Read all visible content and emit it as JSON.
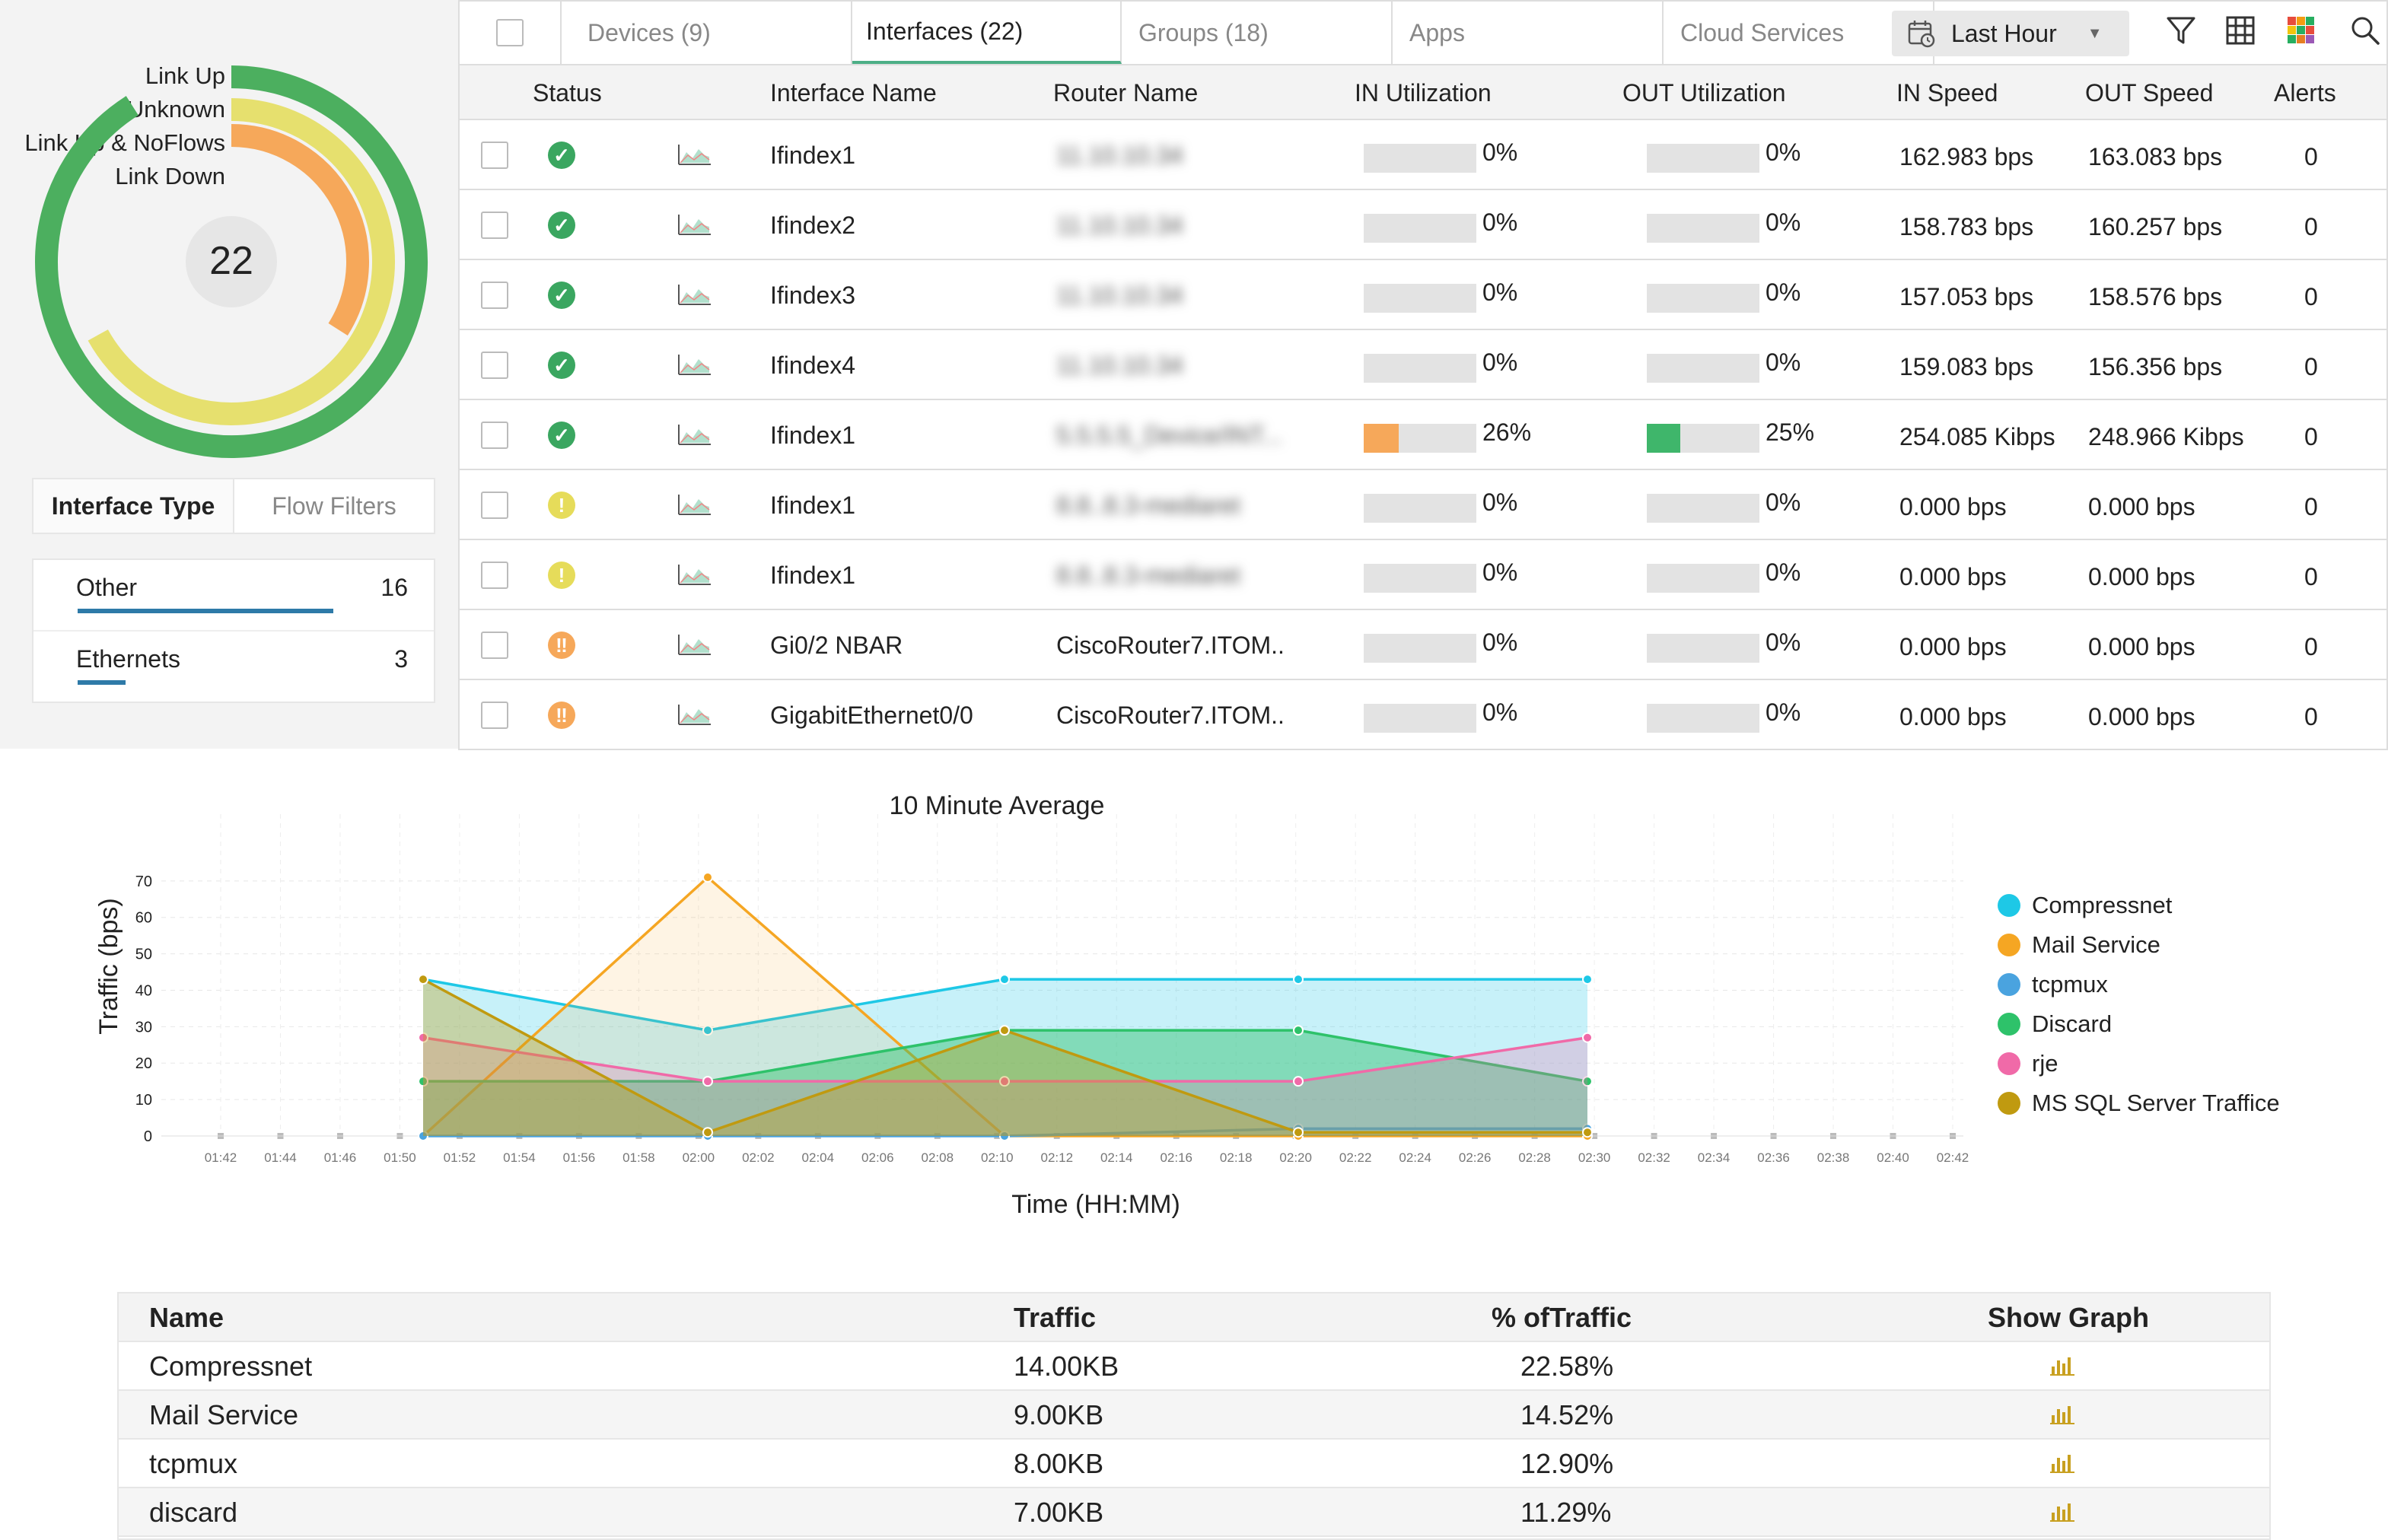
{
  "donut": {
    "legend": [
      "Link Up",
      "Unknown",
      "Link Up & NoFlows",
      "Link Down"
    ],
    "total": "22",
    "rings": [
      {
        "label": "Link Up",
        "color": "#4caf5f",
        "fraction": 0.91
      },
      {
        "label": "Unknown",
        "color": "#e6e06e",
        "fraction": 0.67
      },
      {
        "label": "Link Down",
        "color": "#f6a85a",
        "fraction": 0.34
      }
    ]
  },
  "interface_type": {
    "tabs": [
      "Interface Type",
      "Flow Filters"
    ],
    "items": [
      {
        "name": "Other",
        "count": "16",
        "fraction": 0.8
      },
      {
        "name": "Ethernets",
        "count": "3",
        "fraction": 0.15
      }
    ]
  },
  "tabs": [
    {
      "label": "Devices (9)"
    },
    {
      "label": "Interfaces (22)"
    },
    {
      "label": "Groups (18)"
    },
    {
      "label": "Apps"
    },
    {
      "label": "Cloud Services"
    }
  ],
  "time_range": "Last Hour",
  "columns": [
    "Status",
    "Interface Name",
    "Router Name",
    "IN Utilization",
    "OUT Utilization",
    "IN Speed",
    "OUT Speed",
    "Alerts"
  ],
  "rows": [
    {
      "status": "up",
      "name": "Ifindex1",
      "router": "11.10.10.34",
      "router_blurred": true,
      "in_util": "0%",
      "in_util_value": 0,
      "out_util": "0%",
      "out_util_value": 0,
      "in_speed": "162.983 bps",
      "out_speed": "163.083 bps",
      "alerts": "0"
    },
    {
      "status": "up",
      "name": "Ifindex2",
      "router": "11.10.10.34",
      "router_blurred": true,
      "in_util": "0%",
      "in_util_value": 0,
      "out_util": "0%",
      "out_util_value": 0,
      "in_speed": "158.783 bps",
      "out_speed": "160.257 bps",
      "alerts": "0"
    },
    {
      "status": "up",
      "name": "Ifindex3",
      "router": "11.10.10.34",
      "router_blurred": true,
      "in_util": "0%",
      "in_util_value": 0,
      "out_util": "0%",
      "out_util_value": 0,
      "in_speed": "157.053 bps",
      "out_speed": "158.576 bps",
      "alerts": "0"
    },
    {
      "status": "up",
      "name": "Ifindex4",
      "router": "11.10.10.34",
      "router_blurred": true,
      "in_util": "0%",
      "in_util_value": 0,
      "out_util": "0%",
      "out_util_value": 0,
      "in_speed": "159.083 bps",
      "out_speed": "156.356 bps",
      "alerts": "0"
    },
    {
      "status": "up",
      "name": "Ifindex1",
      "router": "5.5.5.5_Device/INT...",
      "router_blurred": true,
      "in_util": "26%",
      "in_util_value": 26,
      "out_util": "25%",
      "out_util_value": 25,
      "in_speed": "254.085 Kibps",
      "out_speed": "248.966 Kibps",
      "alerts": "0"
    },
    {
      "status": "warning",
      "name": "Ifindex1",
      "router": "8.8..8.3-mediaret",
      "router_blurred": true,
      "in_util": "0%",
      "in_util_value": 0,
      "out_util": "0%",
      "out_util_value": 0,
      "in_speed": "0.000 bps",
      "out_speed": "0.000 bps",
      "alerts": "0"
    },
    {
      "status": "warning",
      "name": "Ifindex1",
      "router": "8.8..8.3-mediaret",
      "router_blurred": true,
      "in_util": "0%",
      "in_util_value": 0,
      "out_util": "0%",
      "out_util_value": 0,
      "in_speed": "0.000 bps",
      "out_speed": "0.000 bps",
      "alerts": "0"
    },
    {
      "status": "trouble",
      "name": "Gi0/2 NBAR",
      "router": "CiscoRouter7.ITOM..",
      "router_blurred": false,
      "in_util": "0%",
      "in_util_value": 0,
      "out_util": "0%",
      "out_util_value": 0,
      "in_speed": "0.000 bps",
      "out_speed": "0.000 bps",
      "alerts": "0"
    },
    {
      "status": "trouble",
      "name": "GigabitEthernet0/0",
      "router": "CiscoRouter7.ITOM..",
      "router_blurred": false,
      "in_util": "0%",
      "in_util_value": 0,
      "out_util": "0%",
      "out_util_value": 0,
      "in_speed": "0.000 bps",
      "out_speed": "0.000 bps",
      "alerts": "0"
    }
  ],
  "colors": {
    "up": "#3aa660",
    "warning": "#e6dc5a",
    "trouble": "#f6a85a",
    "in_fill": "#f6a85a",
    "out_fill": "#3fb66b",
    "bar_icon": "#c8a020"
  },
  "chart_data": {
    "type": "area",
    "title": "10 Minute Average",
    "xlabel": "Time (HH:MM)",
    "ylabel": "Traffic (bps)",
    "ylim": [
      0,
      80
    ],
    "yticks": [
      0,
      10,
      20,
      30,
      40,
      50,
      60,
      70
    ],
    "xticks": [
      "01:42",
      "01:44",
      "01:46",
      "01:50",
      "01:52",
      "01:54",
      "01:56",
      "01:58",
      "02:00",
      "02:02",
      "02:04",
      "02:06",
      "02:08",
      "02:10",
      "02:12",
      "02:14",
      "02:16",
      "02:18",
      "02:20",
      "02:22",
      "02:24",
      "02:26",
      "02:28",
      "02:30",
      "02:32",
      "02:34",
      "02:36",
      "02:38",
      "02:40",
      "02:42"
    ],
    "x": [
      "01:50",
      "02:00",
      "02:10",
      "02:20",
      "02:30"
    ],
    "series": [
      {
        "name": "Compressnet",
        "color": "#1ec8e6",
        "fill": "rgba(30,200,230,0.25)",
        "values": [
          43,
          29,
          43,
          43,
          43
        ]
      },
      {
        "name": "Mail Service",
        "color": "#f5a623",
        "fill": "rgba(245,166,35,0.12)",
        "values": [
          0,
          71,
          0,
          0,
          0
        ]
      },
      {
        "name": "tcpmux",
        "color": "#4aa3df",
        "fill": "rgba(74,163,223,0.15)",
        "values": [
          0,
          0,
          0,
          2,
          2
        ]
      },
      {
        "name": "Discard",
        "color": "#2ec26a",
        "fill": "rgba(46,194,106,0.45)",
        "values": [
          15,
          15,
          29,
          29,
          15
        ]
      },
      {
        "name": "rje",
        "color": "#f06aa8",
        "fill": "rgba(240,106,168,0.25)",
        "values": [
          27,
          15,
          15,
          15,
          27
        ]
      },
      {
        "name": "MS SQL Server Traffice",
        "color": "#c09a10",
        "fill": "rgba(192,154,16,0.35)",
        "values": [
          43,
          1,
          29,
          1,
          1
        ]
      }
    ]
  },
  "traffic_table": {
    "headers": [
      "Name",
      "Traffic",
      "% ofTraffic",
      "Show Graph"
    ],
    "rows": [
      {
        "name": "Compressnet",
        "traffic": "14.00KB",
        "percent": "22.58%"
      },
      {
        "name": "Mail Service",
        "traffic": "9.00KB",
        "percent": "14.52%"
      },
      {
        "name": "tcpmux",
        "traffic": "8.00KB",
        "percent": "12.90%"
      },
      {
        "name": "discard",
        "traffic": "7.00KB",
        "percent": "11.29%"
      }
    ]
  }
}
